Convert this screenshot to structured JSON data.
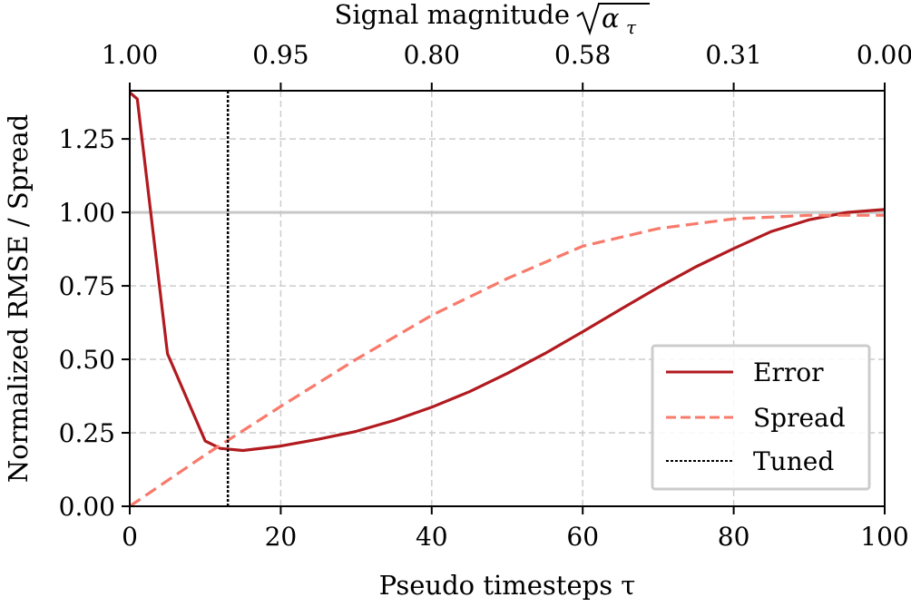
{
  "chart_data": {
    "type": "line",
    "xlabel": "Pseudo timesteps τ",
    "ylabel": "Normalized RMSE / Spread",
    "top_xlabel": "Signal magnitude √α_τ",
    "top_xlabel_text": "Signal magnitude",
    "top_xlabel_math": "α",
    "top_xlabel_sub": "τ",
    "xlim": [
      0,
      100
    ],
    "ylim": [
      0,
      1.414
    ],
    "xticks": [
      0,
      20,
      40,
      60,
      80,
      100
    ],
    "xtick_labels": [
      "0",
      "20",
      "40",
      "60",
      "80",
      "100"
    ],
    "yticks": [
      0,
      0.25,
      0.5,
      0.75,
      1.0,
      1.25
    ],
    "ytick_labels": [
      "0.00",
      "0.25",
      "0.50",
      "0.75",
      "1.00",
      "1.25"
    ],
    "top_xticks": [
      0,
      20,
      40,
      60,
      80,
      100
    ],
    "top_xtick_labels": [
      "1.00",
      "0.95",
      "0.80",
      "0.58",
      "0.31",
      "0.00"
    ],
    "grid": true,
    "reference_line_y": 1.0,
    "legend_position": "lower-right",
    "series": [
      {
        "name": "Error",
        "style": "solid",
        "color": "#b11a1f",
        "x": [
          0,
          1,
          5,
          10,
          12,
          15,
          20,
          25,
          30,
          35,
          40,
          45,
          50,
          55,
          60,
          65,
          70,
          75,
          80,
          85,
          90,
          95,
          100
        ],
        "y": [
          1.408,
          1.386,
          0.519,
          0.222,
          0.197,
          0.19,
          0.205,
          0.228,
          0.255,
          0.292,
          0.337,
          0.39,
          0.452,
          0.52,
          0.594,
          0.67,
          0.745,
          0.815,
          0.877,
          0.935,
          0.975,
          1.0,
          1.01
        ]
      },
      {
        "name": "Spread",
        "style": "dashed",
        "color": "#f87a6b",
        "x": [
          0,
          10,
          20,
          30,
          40,
          50,
          60,
          70,
          80,
          90,
          100
        ],
        "y": [
          0,
          0.175,
          0.34,
          0.5,
          0.65,
          0.775,
          0.885,
          0.945,
          0.978,
          0.99,
          0.99
        ]
      },
      {
        "name": "Tuned",
        "style": "dotted",
        "color": "#000000",
        "vertical_x": 13
      }
    ]
  }
}
